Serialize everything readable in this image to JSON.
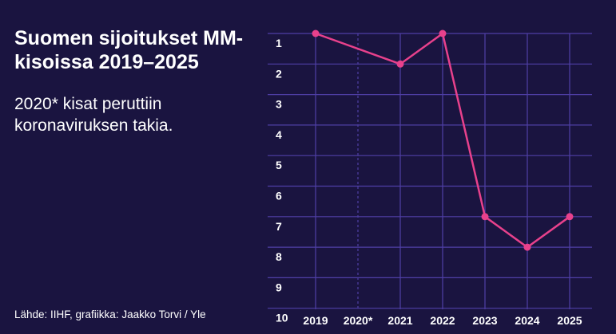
{
  "title": "Suomen sijoitukset MM-kisoissa 2019–2025",
  "subtitle": "2020* kisat peruttiin koronaviruksen takia.",
  "source": "Lähde: IIHF, grafiikka: Jaakko Torvi / Yle",
  "colors": {
    "background": "#1a1440",
    "grid": "#4f3fa6",
    "line": "#e8418c",
    "text": "#ffffff"
  },
  "chart_data": {
    "type": "line",
    "title": "Suomen sijoitukset MM-kisoissa 2019–2025",
    "categories": [
      "2019",
      "2020*",
      "2021",
      "2022",
      "2023",
      "2024",
      "2025"
    ],
    "y_ticks": [
      "1",
      "2",
      "3",
      "4",
      "5",
      "6",
      "7",
      "8",
      "9",
      "10"
    ],
    "ylim": [
      1,
      10
    ],
    "y_inverted": true,
    "grid": true,
    "series": [
      {
        "values": [
          1,
          null,
          2,
          1,
          7,
          8,
          7
        ]
      }
    ],
    "missing_category_style": "dashed gridline for 2020*"
  }
}
